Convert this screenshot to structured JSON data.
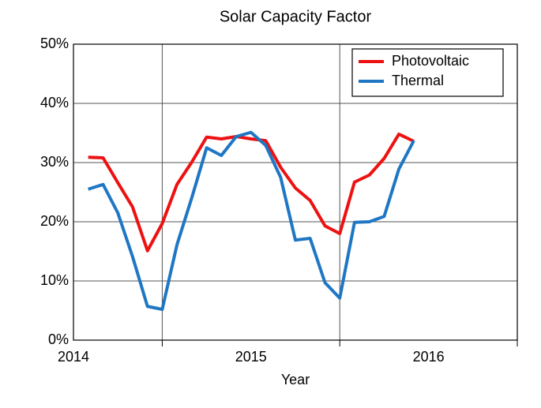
{
  "chart_data": {
    "type": "line",
    "title": "Solar Capacity Factor",
    "xlabel": "Year",
    "x": [
      2014.083,
      2014.167,
      2014.25,
      2014.333,
      2014.417,
      2014.5,
      2014.583,
      2014.667,
      2014.75,
      2014.833,
      2014.917,
      2015.0,
      2015.083,
      2015.167,
      2015.25,
      2015.333,
      2015.417,
      2015.5,
      2015.583,
      2015.667,
      2015.75,
      2015.833,
      2015.917
    ],
    "series": [
      {
        "name": "Photovoltaic",
        "color": "#ee1111",
        "values": [
          30.9,
          30.8,
          26.6,
          22.5,
          15.1,
          19.7,
          26.3,
          30.1,
          34.3,
          34.0,
          34.4,
          34.0,
          33.7,
          29.2,
          25.7,
          23.6,
          19.3,
          18.0,
          26.7,
          27.9,
          30.7,
          34.8,
          33.6
        ]
      },
      {
        "name": "Thermal",
        "color": "#1f77c4",
        "values": [
          25.5,
          26.3,
          21.5,
          14.1,
          5.7,
          5.2,
          16.1,
          24.1,
          32.5,
          31.2,
          34.4,
          35.1,
          32.9,
          27.5,
          16.9,
          17.2,
          9.7,
          7.1,
          19.9,
          20.0,
          20.9,
          28.9,
          33.7
        ]
      }
    ],
    "xlim": [
      2014,
      2016.5
    ],
    "xticks": [
      2014,
      2015,
      2016
    ],
    "xgrid": [
      2014.5,
      2015.5,
      2016.5
    ],
    "ylim": [
      0,
      50
    ],
    "yticks": [
      {
        "value": 0,
        "label": "0%"
      },
      {
        "value": 10,
        "label": "10%"
      },
      {
        "value": 20,
        "label": "20%"
      },
      {
        "value": 30,
        "label": "30%"
      },
      {
        "value": 40,
        "label": "40%"
      },
      {
        "value": 50,
        "label": "50%"
      }
    ],
    "grid": true,
    "legend": "upper right"
  }
}
